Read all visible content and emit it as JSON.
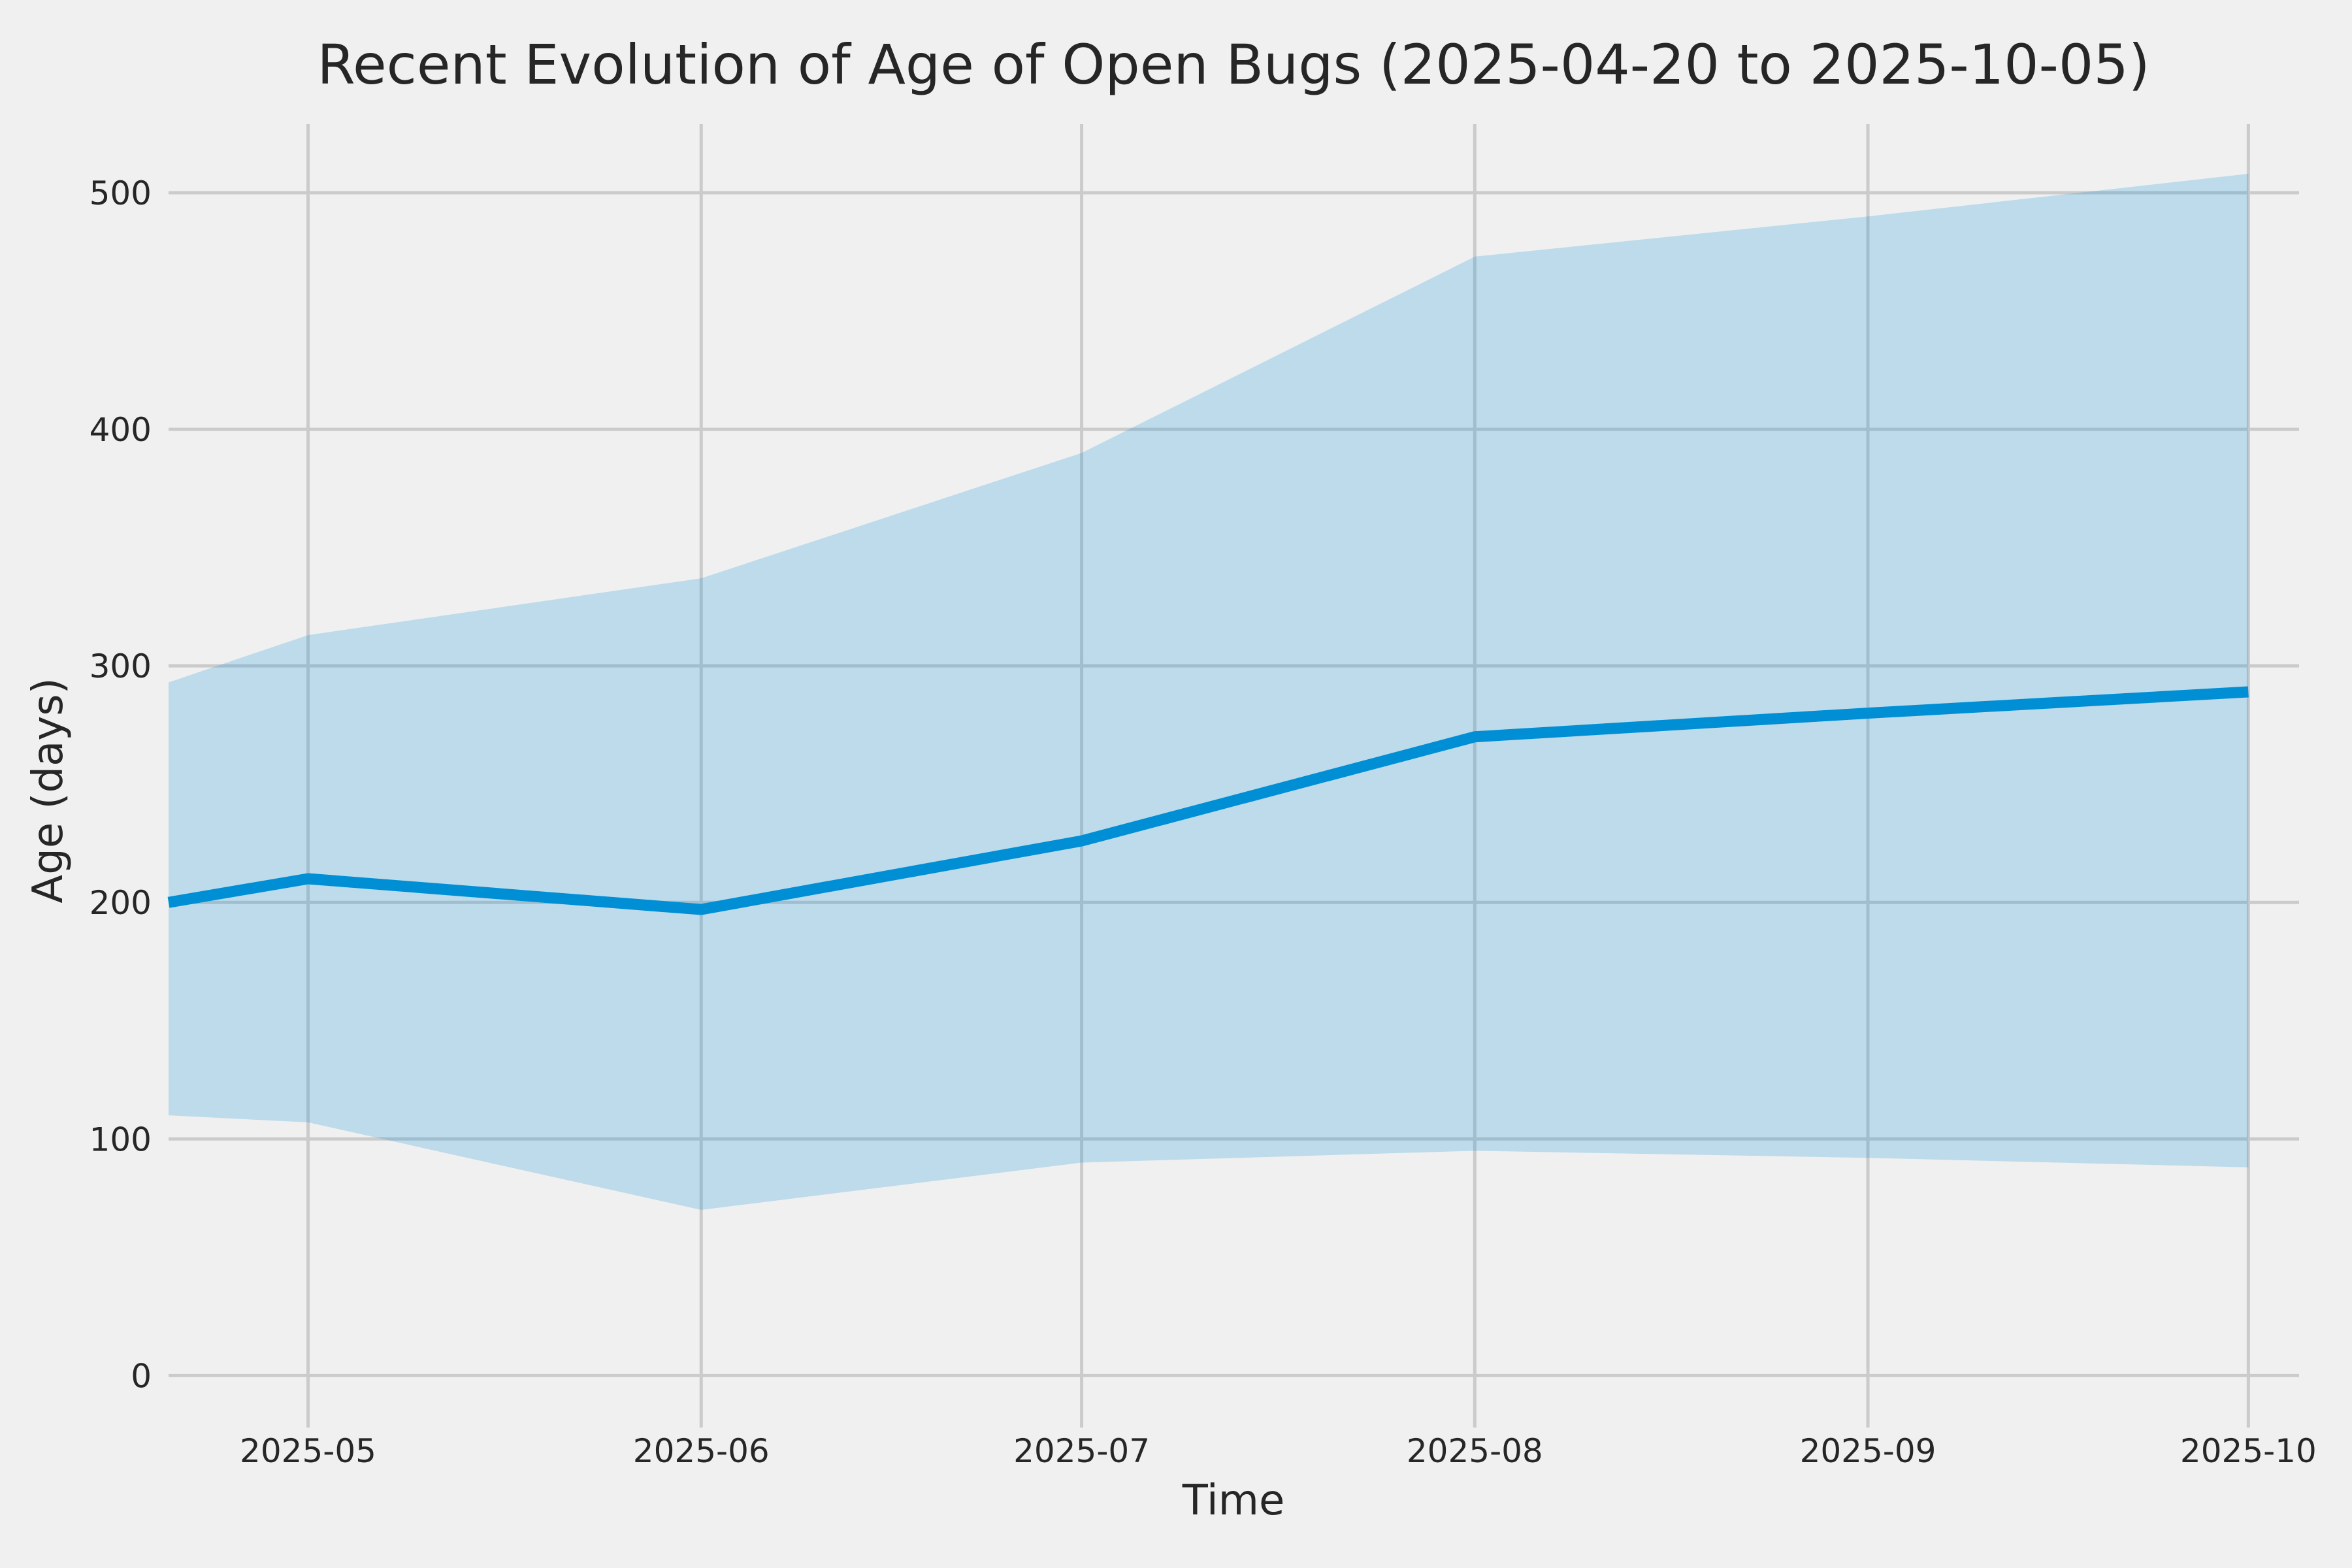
{
  "chart_data": {
    "type": "line",
    "title": "Recent Evolution of Age of Open Bugs (2025-04-20 to 2025-10-05)",
    "xlabel": "Time",
    "ylabel": "Age (days)",
    "x_dates": [
      "2025-04-20",
      "2025-05-01",
      "2025-06-01",
      "2025-07-01",
      "2025-08-01",
      "2025-09-01",
      "2025-10-01"
    ],
    "series": [
      {
        "name": "median_age_days",
        "role": "line",
        "values": [
          200,
          210,
          197,
          226,
          270,
          280,
          289
        ]
      },
      {
        "name": "band_upper_days",
        "role": "band-upper",
        "values": [
          293,
          313,
          337,
          390,
          473,
          490,
          508
        ]
      },
      {
        "name": "band_lower_days",
        "role": "band-lower",
        "values": [
          110,
          107,
          70,
          90,
          95,
          92,
          88
        ]
      }
    ],
    "xlim": [
      "2025-04-20",
      "2025-10-05"
    ],
    "ylim": [
      -22,
      529
    ],
    "yticks": [
      0,
      100,
      200,
      300,
      400,
      500
    ],
    "xticks": [
      {
        "date": "2025-05-01",
        "label": "2025-05"
      },
      {
        "date": "2025-06-01",
        "label": "2025-06"
      },
      {
        "date": "2025-07-01",
        "label": "2025-07"
      },
      {
        "date": "2025-08-01",
        "label": "2025-08"
      },
      {
        "date": "2025-09-01",
        "label": "2025-09"
      },
      {
        "date": "2025-10-01",
        "label": "2025-10"
      }
    ],
    "grid": true,
    "legend": false,
    "colors": {
      "line": "#008fd5",
      "band": "#008fd5",
      "band_opacity": 0.21,
      "background": "#f0f0f0",
      "grid": "#cbcbcb",
      "text": "#262626"
    }
  }
}
